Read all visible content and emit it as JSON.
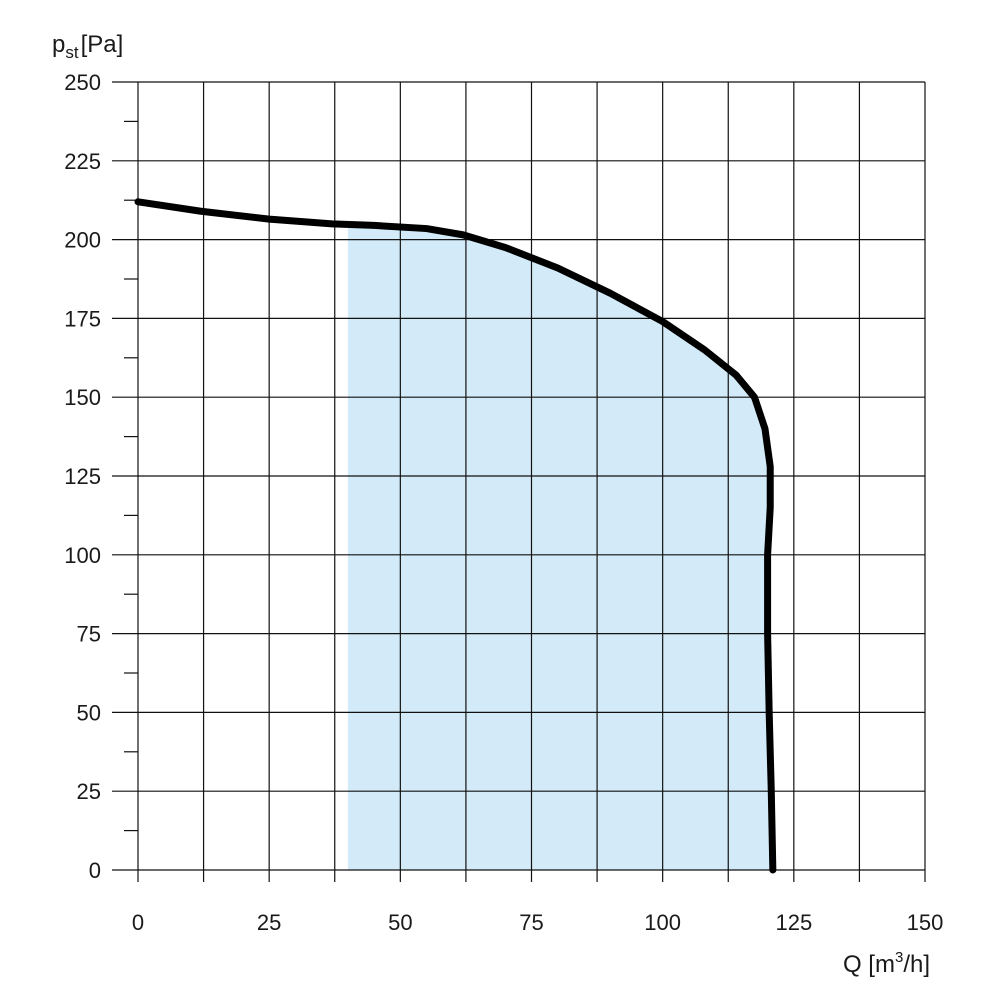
{
  "chart_data": {
    "type": "line",
    "title": "",
    "ylabel": {
      "symbol": "p",
      "subscript": "st",
      "unit": "[Pa]"
    },
    "xlabel": {
      "prefix": "Q [m",
      "superscript": "3",
      "suffix": "/h]"
    },
    "xlim": [
      0,
      150
    ],
    "ylim": [
      0,
      250
    ],
    "x_ticks": [
      0,
      25,
      50,
      75,
      100,
      125,
      150
    ],
    "y_ticks": [
      0,
      25,
      50,
      75,
      100,
      125,
      150,
      175,
      200,
      225,
      250
    ],
    "grid": true,
    "colors": {
      "curve": "#000000",
      "region": "#d3ebf8",
      "grid": "#111111"
    },
    "series": [
      {
        "points": [
          [
            0,
            212
          ],
          [
            12,
            209
          ],
          [
            25,
            206.5
          ],
          [
            37,
            205
          ],
          [
            45,
            204.5
          ],
          [
            55,
            203.5
          ],
          [
            62,
            201.5
          ],
          [
            70,
            197.5
          ],
          [
            80,
            191
          ],
          [
            90,
            183
          ],
          [
            100,
            174
          ],
          [
            108,
            165
          ],
          [
            114,
            157
          ],
          [
            117.5,
            150
          ],
          [
            119.5,
            140
          ],
          [
            120.5,
            128
          ],
          [
            120.5,
            115
          ],
          [
            120,
            100
          ],
          [
            120,
            75
          ],
          [
            120.3,
            50
          ],
          [
            120.7,
            25
          ],
          [
            121,
            0
          ]
        ]
      }
    ],
    "shaded_region": {
      "x_start": 40,
      "follows_curve": true
    }
  }
}
